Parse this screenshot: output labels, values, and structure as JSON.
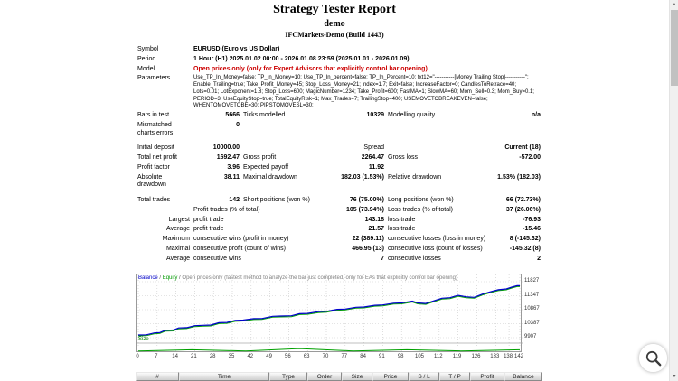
{
  "page": {
    "title": "Strategy Tester Report",
    "subtitle": "demo",
    "server": "IFCMarkets-Demo (Build 1443)"
  },
  "stats": {
    "rows": [
      {
        "cells": [
          {
            "t": "Symbol",
            "n": "symbol-label"
          },
          {
            "t": "EURUSD (Euro vs US Dollar)",
            "s": 5,
            "b": 1,
            "n": "symbol-value"
          }
        ]
      },
      {
        "cells": [
          {
            "t": "Period",
            "n": "period-label"
          },
          {
            "t": "1 Hour (H1) 2025.01.02 00:00 - 2026.01.08 23:59 (2025.01.01 - 2026.01.09)",
            "s": 5,
            "b": 1,
            "n": "period-value"
          }
        ]
      },
      {
        "cells": [
          {
            "t": "Model",
            "n": "model-label"
          },
          {
            "t": "Open prices only (only for Expert Advisors that explicitly control bar opening)",
            "s": 5,
            "b": 1,
            "col": "#cc0000",
            "n": "model-value"
          }
        ]
      },
      {
        "cells": [
          {
            "t": "Parameters",
            "n": "parameters-label"
          },
          {
            "t": "Use_TP_In_Money=false; TP_In_Money=10; Use_TP_In_percent=false; TP_In_Percent=10; txt12=\"-----------[Money Trailing Stop]-----------\"; Enable_Trailing=true; Take_Profit_Money=45; Stop_Loss_Money=21; index=1.7; Exit=false; IncreaseFactor=0; CandlesToRetrace=40; Lots=0.01; LotExponent=1.8; Stop_Loss=600; MagicNumber=1234; Take_Profit=600; FastMA=1; SlowMA=60; Mom_Sell=0.3; Mom_Buy=0.1; PERIOD=3; UseEquityStop=true; TotalEquityRisk=1; Max_Trades=7; TrailingStop=400; USEMOVETOBREAKEVEN=false; WHENTOMOVETOBE=30; PIPSTOMOVESL=30;",
            "s": 5,
            "cls": "params",
            "n": "parameters-value"
          }
        ]
      },
      {
        "cells": [
          {
            "t": "Bars in test"
          },
          {
            "t": "5666",
            "b": 1,
            "a": "right"
          },
          {
            "t": "Ticks modelled"
          },
          {
            "t": "10329",
            "b": 1,
            "a": "right"
          },
          {
            "t": "Modelling quality"
          },
          {
            "t": "n/a",
            "b": 1,
            "a": "right"
          }
        ]
      },
      {
        "cells": [
          {
            "t": "Mismatched charts errors"
          },
          {
            "t": "0",
            "b": 1,
            "a": "right"
          }
        ]
      },
      {
        "spacer": 1
      },
      {
        "cells": [
          {
            "t": "Initial deposit"
          },
          {
            "t": "10000.00",
            "b": 1,
            "a": "right"
          },
          {
            "t": ""
          },
          {
            "t": "Spread",
            "a": "right"
          },
          {
            "t": ""
          },
          {
            "t": "Current (18)",
            "b": 1,
            "a": "right"
          }
        ]
      },
      {
        "cells": [
          {
            "t": "Total net profit"
          },
          {
            "t": "1692.47",
            "b": 1,
            "a": "right"
          },
          {
            "t": "Gross profit"
          },
          {
            "t": "2264.47",
            "b": 1,
            "a": "right"
          },
          {
            "t": "Gross loss"
          },
          {
            "t": "-572.00",
            "b": 1,
            "a": "right"
          }
        ]
      },
      {
        "cells": [
          {
            "t": "Profit factor"
          },
          {
            "t": "3.96",
            "b": 1,
            "a": "right"
          },
          {
            "t": "Expected payoff"
          },
          {
            "t": "11.92",
            "b": 1,
            "a": "right"
          },
          {
            "t": ""
          },
          {
            "t": ""
          }
        ]
      },
      {
        "cells": [
          {
            "t": "Absolute drawdown"
          },
          {
            "t": "38.11",
            "b": 1,
            "a": "right"
          },
          {
            "t": "Maximal drawdown"
          },
          {
            "t": "182.03 (1.53%)",
            "b": 1,
            "a": "right"
          },
          {
            "t": "Relative drawdown"
          },
          {
            "t": "1.53% (182.03)",
            "b": 1,
            "a": "right"
          }
        ]
      },
      {
        "spacer": 1
      },
      {
        "cells": [
          {
            "t": "Total trades"
          },
          {
            "t": "142",
            "b": 1,
            "a": "right"
          },
          {
            "t": "Short positions (won %)"
          },
          {
            "t": "76 (75.00%)",
            "b": 1,
            "a": "right"
          },
          {
            "t": "Long positions (won %)"
          },
          {
            "t": "66 (72.73%)",
            "b": 1,
            "a": "right"
          }
        ]
      },
      {
        "cells": [
          {
            "t": ""
          },
          {
            "t": "Profit trades (% of total)",
            "s": 2
          },
          {
            "t": "105 (73.94%)",
            "b": 1,
            "a": "right"
          },
          {
            "t": "Loss trades (% of total)"
          },
          {
            "t": "37 (26.06%)",
            "b": 1,
            "a": "right"
          }
        ]
      },
      {
        "cells": [
          {
            "t": "Largest",
            "a": "right"
          },
          {
            "t": "profit trade",
            "s": 2
          },
          {
            "t": "143.18",
            "b": 1,
            "a": "right"
          },
          {
            "t": "loss trade"
          },
          {
            "t": "-76.93",
            "b": 1,
            "a": "right"
          }
        ]
      },
      {
        "cells": [
          {
            "t": "Average",
            "a": "right"
          },
          {
            "t": "profit trade",
            "s": 2
          },
          {
            "t": "21.57",
            "b": 1,
            "a": "right"
          },
          {
            "t": "loss trade"
          },
          {
            "t": "-15.46",
            "b": 1,
            "a": "right"
          }
        ]
      },
      {
        "cells": [
          {
            "t": "Maximum",
            "a": "right"
          },
          {
            "t": "consecutive wins (profit in money)",
            "s": 2
          },
          {
            "t": "22 (389.11)",
            "b": 1,
            "a": "right"
          },
          {
            "t": "consecutive losses (loss in money)"
          },
          {
            "t": "8 (-145.32)",
            "b": 1,
            "a": "right"
          }
        ]
      },
      {
        "cells": [
          {
            "t": "Maximal",
            "a": "right"
          },
          {
            "t": "consecutive profit (count of wins)",
            "s": 2
          },
          {
            "t": "466.95 (13)",
            "b": 1,
            "a": "right"
          },
          {
            "t": "consecutive loss (count of losses)"
          },
          {
            "t": "-145.32 (8)",
            "b": 1,
            "a": "right"
          }
        ]
      },
      {
        "cells": [
          {
            "t": "Average",
            "a": "right"
          },
          {
            "t": "consecutive wins",
            "s": 2
          },
          {
            "t": "7",
            "b": 1,
            "a": "right"
          },
          {
            "t": "consecutive losses"
          },
          {
            "t": "2",
            "b": 1,
            "a": "right"
          }
        ]
      }
    ]
  },
  "chart_data": {
    "type": "line",
    "title": "Balance / Equity",
    "legend": [
      "Balance",
      "Equity"
    ],
    "sep": " / ",
    "header_note": "Open prices only (fastest method to analyze the bar just completed, only for EAs that explicitly control bar opening)",
    "size_label": "Size",
    "x_range": [
      0,
      142
    ],
    "y_range": [
      9907,
      11827
    ],
    "x_ticks": [
      0,
      7,
      14,
      21,
      28,
      35,
      42,
      49,
      56,
      63,
      70,
      77,
      84,
      91,
      98,
      105,
      112,
      119,
      126,
      133,
      138,
      142
    ],
    "y_ticks": [
      9907,
      10387,
      10867,
      11347,
      11827
    ],
    "colors": {
      "balance": "#0000cc",
      "equity": "#00a000",
      "grid": "#c9c9c9",
      "size": "#00a000"
    },
    "series": [
      {
        "name": "Balance",
        "points": [
          [
            0,
            10000
          ],
          [
            3,
            10005
          ],
          [
            6,
            10070
          ],
          [
            8,
            10085
          ],
          [
            10,
            10160
          ],
          [
            13,
            10170
          ],
          [
            15,
            10240
          ],
          [
            18,
            10250
          ],
          [
            21,
            10320
          ],
          [
            24,
            10330
          ],
          [
            27,
            10340
          ],
          [
            30,
            10420
          ],
          [
            33,
            10430
          ],
          [
            36,
            10500
          ],
          [
            39,
            10510
          ],
          [
            43,
            10560
          ],
          [
            46,
            10565
          ],
          [
            50,
            10640
          ],
          [
            53,
            10650
          ],
          [
            57,
            10660
          ],
          [
            60,
            10730
          ],
          [
            63,
            10740
          ],
          [
            67,
            10800
          ],
          [
            70,
            10810
          ],
          [
            74,
            10880
          ],
          [
            77,
            10890
          ],
          [
            81,
            10950
          ],
          [
            84,
            10960
          ],
          [
            88,
            11020
          ],
          [
            91,
            11030
          ],
          [
            95,
            11090
          ],
          [
            98,
            11100
          ],
          [
            102,
            11160
          ],
          [
            104,
            11100
          ],
          [
            107,
            11080
          ],
          [
            110,
            11170
          ],
          [
            113,
            11260
          ],
          [
            116,
            11280
          ],
          [
            119,
            11360
          ],
          [
            122,
            11310
          ],
          [
            125,
            11290
          ],
          [
            128,
            11400
          ],
          [
            131,
            11480
          ],
          [
            134,
            11550
          ],
          [
            137,
            11580
          ],
          [
            139,
            11640
          ],
          [
            141,
            11690
          ],
          [
            142,
            11692
          ]
        ]
      },
      {
        "name": "Equity",
        "points": [
          [
            0,
            10000
          ],
          [
            3,
            10005
          ],
          [
            6,
            10070
          ],
          [
            8,
            10085
          ],
          [
            10,
            10160
          ],
          [
            13,
            10170
          ],
          [
            15,
            10240
          ],
          [
            18,
            10250
          ],
          [
            21,
            10320
          ],
          [
            24,
            10330
          ],
          [
            27,
            10340
          ],
          [
            30,
            10420
          ],
          [
            33,
            10430
          ],
          [
            36,
            10500
          ],
          [
            39,
            10510
          ],
          [
            43,
            10560
          ],
          [
            46,
            10565
          ],
          [
            50,
            10640
          ],
          [
            53,
            10650
          ],
          [
            57,
            10660
          ],
          [
            60,
            10730
          ],
          [
            63,
            10740
          ],
          [
            67,
            10800
          ],
          [
            70,
            10810
          ],
          [
            74,
            10880
          ],
          [
            77,
            10890
          ],
          [
            81,
            10950
          ],
          [
            84,
            10960
          ],
          [
            88,
            11020
          ],
          [
            91,
            11030
          ],
          [
            95,
            11090
          ],
          [
            98,
            11100
          ],
          [
            102,
            11160
          ],
          [
            104,
            11100
          ],
          [
            107,
            11080
          ],
          [
            110,
            11170
          ],
          [
            113,
            11260
          ],
          [
            116,
            11280
          ],
          [
            119,
            11360
          ],
          [
            122,
            11310
          ],
          [
            125,
            11290
          ],
          [
            128,
            11400
          ],
          [
            131,
            11480
          ],
          [
            134,
            11550
          ],
          [
            137,
            11580
          ],
          [
            139,
            11640
          ],
          [
            141,
            11690
          ],
          [
            142,
            11692
          ]
        ]
      }
    ],
    "size_points": [
      [
        0,
        0.01
      ],
      [
        20,
        0.02
      ],
      [
        40,
        0.01
      ],
      [
        60,
        0.03
      ],
      [
        80,
        0.01
      ],
      [
        100,
        0.02
      ],
      [
        120,
        0.01
      ],
      [
        142,
        0.02
      ]
    ]
  },
  "trade_table": {
    "columns": [
      "#",
      "Time",
      "Type",
      "Order",
      "Size",
      "Price",
      "S / L",
      "T / P",
      "Profit",
      "Balance"
    ]
  },
  "icons": {
    "scroll_up": "▲",
    "scroll_down": "▼"
  }
}
